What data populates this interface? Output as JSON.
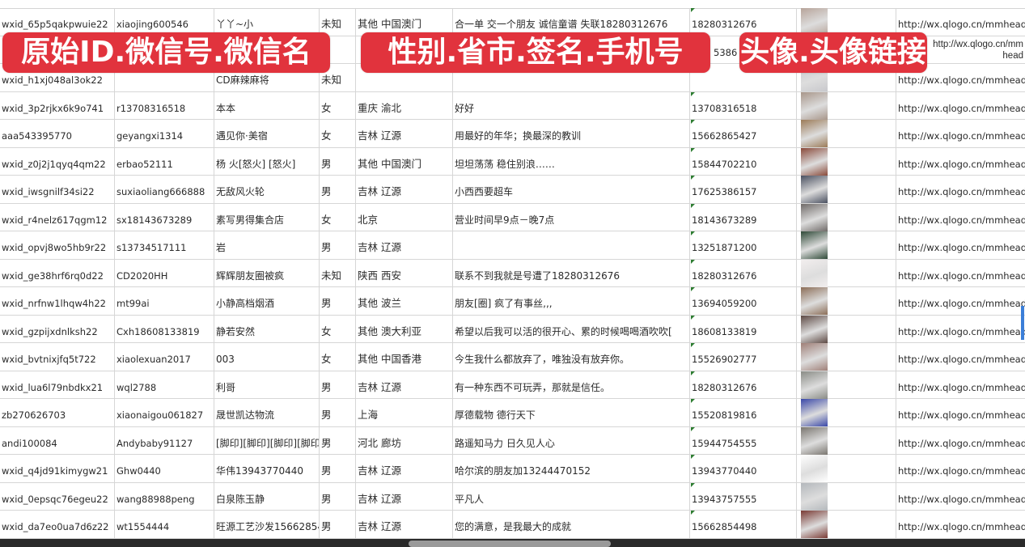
{
  "banners": [
    "原始ID.微信号.微信名",
    "性别.省市.签名.手机号",
    "头像.头像链接"
  ],
  "rows": [
    {
      "id": "wxid_65p5qakpwuie22",
      "wechat": "xiaojing600546",
      "name": "丫丫~小",
      "gender": "未知",
      "region": "其他 中国澳门",
      "signature": "合一单 交一个朋友 诚信童谱 失联18280312676",
      "phone": "18280312676",
      "avatar_color": "#b7a49a",
      "link": "http://wx.qlogo.cn/mmhead"
    },
    {
      "id": "",
      "wechat": "",
      "name": "",
      "gender": "",
      "region": "",
      "signature": "",
      "phone": "5386",
      "avatar_color": "#7a86b8",
      "link": "http://wx.qlogo.cn/mmhead"
    },
    {
      "id": "wxid_h1xj048al3ok22",
      "wechat": "",
      "name": "CD麻辣麻将",
      "gender": "未知",
      "region": "",
      "signature": "",
      "phone": "",
      "avatar_color": "#c8c8cc",
      "link": "http://wx.qlogo.cn/mmhead"
    },
    {
      "id": "wxid_3p2rjkx6k9o741",
      "wechat": "r13708316518",
      "name": "本本",
      "gender": "女",
      "region": "重庆 渝北",
      "signature": "好好",
      "phone": "13708316518",
      "avatar_color": "#a8968a",
      "link": "http://wx.qlogo.cn/mmhead"
    },
    {
      "id": "aaa543395770",
      "wechat": "geyangxi1314",
      "name": "遇见你·美宿",
      "gender": "女",
      "region": "吉林 辽源",
      "signature": "用最好的年华；换最深的教训",
      "phone": "15662865427",
      "avatar_color": "#9c7b58",
      "link": "http://wx.qlogo.cn/mmhead"
    },
    {
      "id": "wxid_z0j2j1qyq4qm22",
      "wechat": "erbao52111",
      "name": "杨 火[怒火] [怒火]",
      "gender": "男",
      "region": "其他 中国澳门",
      "signature": "坦坦荡荡 稳住别浪……",
      "phone": "15844702210",
      "avatar_color": "#8a4a3a",
      "link": "http://wx.qlogo.cn/mmhead"
    },
    {
      "id": "wxid_iwsgnilf34si22",
      "wechat": "suxiaoliang666888",
      "name": "无敌风火轮",
      "gender": "男",
      "region": "吉林 辽源",
      "signature": "小西西要超车",
      "phone": "17625386157",
      "avatar_color": "#4a5060",
      "link": "http://wx.qlogo.cn/mmhead"
    },
    {
      "id": "wxid_r4nelz617qgm12",
      "wechat": "sx18143673289",
      "name": "素写男得集合店",
      "gender": "女",
      "region": "北京",
      "signature": "营业时间早9点－晚7点",
      "phone": "18143673289",
      "avatar_color": "#6f6a68",
      "link": "http://wx.qlogo.cn/mmhead"
    },
    {
      "id": "wxid_opvj8wo5hb9r22",
      "wechat": "s13734517111",
      "name": "岩",
      "gender": "男",
      "region": "吉林 辽源",
      "signature": "",
      "phone": "13251871200",
      "avatar_color": "#2f4a38",
      "link": "http://wx.qlogo.cn/mmhead"
    },
    {
      "id": "wxid_ge38hrf6rq0d22",
      "wechat": "CD2020HH",
      "name": "辉辉朋友圈被疯",
      "gender": "未知",
      "region": "陕西 西安",
      "signature": "联系不到我就是号遭了18280312676",
      "phone": "18280312676",
      "avatar_color": "#f2eeee",
      "link": "http://wx.qlogo.cn/mmhead"
    },
    {
      "id": "wxid_nrfnw1lhqw4h22",
      "wechat": "mt99ai",
      "name": "小静高档烟酒",
      "gender": "男",
      "region": "其他 波兰",
      "signature": "朋友[圈] 疯了有事丝,,,",
      "phone": "13694059200",
      "avatar_color": "#8c6e58",
      "link": "http://wx.qlogo.cn/mmhead"
    },
    {
      "id": "wxid_gzpijxdnlksh22",
      "wechat": "Cxh18608133819",
      "name": "静若安然",
      "gender": "女",
      "region": "其他 澳大利亚",
      "signature": "希望以后我可以活的很开心、累的时候喝喝酒吹吹[",
      "phone": "18608133819",
      "avatar_color": "#5e4a44",
      "link": "http://wx.qlogo.cn/mmhead"
    },
    {
      "id": "wxid_bvtnixjfq5t722",
      "wechat": "xiaolexuan2017",
      "name": "003",
      "gender": "女",
      "region": "其他 中国香港",
      "signature": "今生我什么都放弃了，唯独没有放弃你。",
      "phone": "15526902777",
      "avatar_color": "#a08078",
      "link": "http://wx.qlogo.cn/mmhead"
    },
    {
      "id": "wxid_lua6l79nbdkx21",
      "wechat": "wql2788",
      "name": "利哥",
      "gender": "男",
      "region": "吉林 辽源",
      "signature": "有一种东西不可玩弄，那就是信任。",
      "phone": "18280312676",
      "avatar_color": "#8a8c86",
      "link": "http://wx.qlogo.cn/mmhead"
    },
    {
      "id": "zb270626703",
      "wechat": "xiaonaigou061827",
      "name": "晟世凯达物流",
      "gender": "男",
      "region": "上海",
      "signature": "厚德载物 德行天下",
      "phone": "15520819816",
      "avatar_color": "#3a48a8",
      "link": "http://wx.qlogo.cn/mmhead"
    },
    {
      "id": "andi100084",
      "wechat": "Andybaby91127",
      "name": "[脚印][脚印][脚印][脚印",
      "gender": "男",
      "region": "河北 廊坊",
      "signature": "路遥知马力 日久见人心",
      "phone": "15944754555",
      "avatar_color": "#7a7670",
      "link": "http://wx.qlogo.cn/mmhead"
    },
    {
      "id": "wxid_q4jd91kimygw21",
      "wechat": "Ghw0440",
      "name": "华伟13943770440",
      "gender": "男",
      "region": "吉林 辽源",
      "signature": "哈尔滨的朋友加13244470152",
      "phone": "13943770440",
      "avatar_color": "#ffffff",
      "link": "http://wx.qlogo.cn/mmhead"
    },
    {
      "id": "wxid_0epsqc76egeu22",
      "wechat": "wang88988peng",
      "name": "白泉陈玉静",
      "gender": "男",
      "region": "吉林 辽源",
      "signature": "平凡人",
      "phone": "13943757555",
      "avatar_color": "#b4b8bc",
      "link": "http://wx.qlogo.cn/mmhead"
    },
    {
      "id": "wxid_da7eo0ua7d6z22",
      "wechat": "wt1554444",
      "name": "旺源工艺沙发15662854",
      "gender": "男",
      "region": "吉林 辽源",
      "signature": "您的满意，是我最大的成就",
      "phone": "15662854498",
      "avatar_color": "#7a3a34",
      "link": "http://wx.qlogo.cn/mmhead"
    }
  ]
}
